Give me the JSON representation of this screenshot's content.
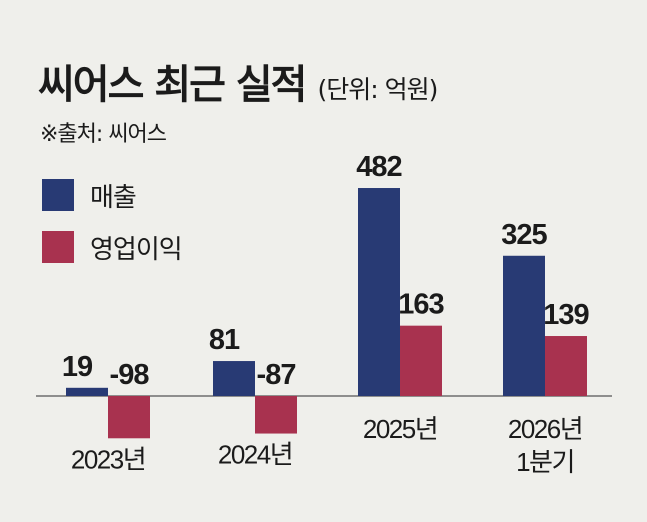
{
  "title": "씨어스 최근 실적",
  "unit_note": "(단위: 억원)",
  "source": "※출처: 씨어스",
  "colors": {
    "revenue": "#283a74",
    "operating_profit": "#a8324f",
    "background": "#efefeb",
    "axis": "#555555"
  },
  "chart_data": {
    "type": "bar",
    "categories": [
      [
        "2023년"
      ],
      [
        "2024년"
      ],
      [
        "2025년"
      ],
      [
        "2026년",
        "1분기"
      ]
    ],
    "series": [
      {
        "name": "매출",
        "values": [
          19,
          81,
          482,
          325
        ]
      },
      {
        "name": "영업이익",
        "values": [
          -98,
          -87,
          163,
          139
        ]
      }
    ],
    "legend": "top-left",
    "grid": false
  }
}
